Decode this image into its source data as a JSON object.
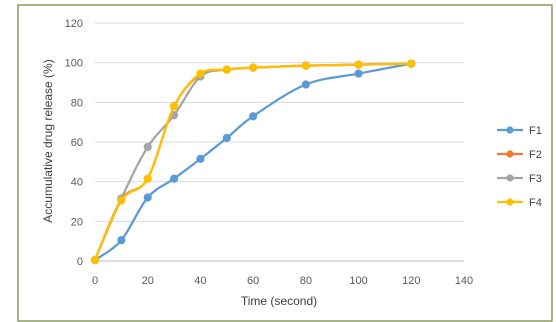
{
  "chart_data": {
    "type": "line",
    "xlabel": "Time (second)",
    "ylabel": "Accumulative drug release (%)",
    "xlim": [
      0,
      140
    ],
    "ylim": [
      0,
      120
    ],
    "xticks": [
      0,
      20,
      40,
      60,
      80,
      100,
      120,
      140
    ],
    "yticks": [
      0,
      20,
      40,
      60,
      80,
      100,
      120
    ],
    "grid": true,
    "legend_position": "right",
    "smooth": true,
    "series": [
      {
        "name": "F1",
        "color": "#5b9bd5",
        "x": [
          0,
          10,
          20,
          30,
          40,
          50,
          60,
          80,
          100,
          120
        ],
        "y": [
          0.5,
          10.5,
          32,
          41.5,
          51.5,
          62,
          73,
          89,
          94.5,
          99.5
        ]
      },
      {
        "name": "F2",
        "color": "#ed7d31",
        "x": [
          0,
          10,
          20,
          30,
          40,
          50,
          60,
          80,
          100,
          120
        ],
        "y": [
          0.5,
          31,
          41.5,
          78,
          94,
          96.5,
          97.5,
          98.5,
          99,
          99.5
        ]
      },
      {
        "name": "F3",
        "color": "#a5a5a5",
        "x": [
          0,
          10,
          20,
          30,
          40,
          50,
          60,
          80,
          100,
          120
        ],
        "y": [
          0.5,
          31.5,
          57.5,
          73.5,
          93,
          96.5,
          97.5,
          98.5,
          99,
          99.5
        ]
      },
      {
        "name": "F4",
        "color": "#ffc000",
        "x": [
          0,
          10,
          20,
          30,
          40,
          50,
          60,
          80,
          100,
          120
        ],
        "y": [
          0.5,
          30.5,
          41.5,
          78,
          94.5,
          96.5,
          97.5,
          98.5,
          99,
          99.5
        ]
      }
    ]
  }
}
